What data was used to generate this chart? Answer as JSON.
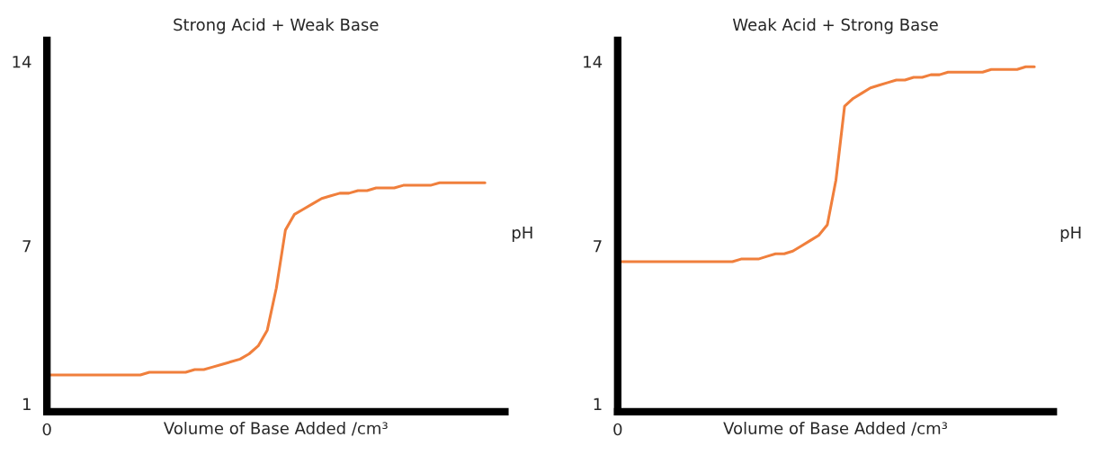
{
  "chart_data": [
    {
      "type": "line",
      "title": "Strong Acid + Weak Base",
      "xlabel": "Volume of Base Added /cm³",
      "ylabel": "pH",
      "annotations": [
        "0"
      ],
      "tick_labels": "y",
      "grid": false,
      "legend": false,
      "categories": [
        null,
        null,
        null,
        null,
        null,
        null,
        null,
        null,
        null,
        null,
        null,
        null,
        null,
        null,
        null,
        null,
        null,
        null,
        null,
        null,
        null,
        null,
        null,
        null,
        null,
        null,
        null,
        null,
        null,
        null,
        null,
        null,
        null,
        null,
        null,
        null,
        null,
        null,
        null,
        null,
        null,
        null,
        null,
        null,
        null,
        null,
        null,
        null,
        null
      ],
      "ylim": [
        0.7,
        14.8
      ],
      "yticks": [
        1,
        7,
        14
      ],
      "series": [
        {
          "color": "#f07f3c",
          "values": [
            2.1,
            2.1,
            2.1,
            2.1,
            2.1,
            2.1,
            2.1,
            2.1,
            2.1,
            2.1,
            2.1,
            2.2,
            2.2,
            2.2,
            2.2,
            2.2,
            2.3,
            2.3,
            2.4,
            2.5,
            2.6,
            2.7,
            2.9,
            3.2,
            3.8,
            5.4,
            7.6,
            8.2,
            8.4,
            8.6,
            8.8,
            8.9,
            9.0,
            9.0,
            9.1,
            9.1,
            9.2,
            9.2,
            9.2,
            9.3,
            9.3,
            9.3,
            9.3,
            9.4,
            9.4,
            9.4,
            9.4,
            9.4,
            9.4
          ]
        }
      ]
    },
    {
      "type": "line",
      "title": "Weak Acid + Strong Base",
      "xlabel": "Volume of Base Added /cm³",
      "ylabel": "pH",
      "annotations": [
        "0"
      ],
      "tick_labels": "y",
      "grid": false,
      "legend": false,
      "categories": [
        null,
        null,
        null,
        null,
        null,
        null,
        null,
        null,
        null,
        null,
        null,
        null,
        null,
        null,
        null,
        null,
        null,
        null,
        null,
        null,
        null,
        null,
        null,
        null,
        null,
        null,
        null,
        null,
        null,
        null,
        null,
        null,
        null,
        null,
        null,
        null,
        null,
        null,
        null,
        null,
        null,
        null,
        null,
        null,
        null,
        null,
        null,
        null,
        null
      ],
      "ylim": [
        0.7,
        14.8
      ],
      "yticks": [
        1,
        7,
        14
      ],
      "series": [
        {
          "color": "#f07f3c",
          "values": [
            6.4,
            6.4,
            6.4,
            6.4,
            6.4,
            6.4,
            6.4,
            6.4,
            6.4,
            6.4,
            6.4,
            6.4,
            6.4,
            6.4,
            6.5,
            6.5,
            6.5,
            6.6,
            6.7,
            6.7,
            6.8,
            7.0,
            7.2,
            7.4,
            7.8,
            9.5,
            12.3,
            12.6,
            12.8,
            13.0,
            13.1,
            13.2,
            13.3,
            13.3,
            13.4,
            13.4,
            13.5,
            13.5,
            13.6,
            13.6,
            13.6,
            13.6,
            13.6,
            13.7,
            13.7,
            13.7,
            13.7,
            13.8,
            13.8
          ]
        }
      ]
    }
  ]
}
